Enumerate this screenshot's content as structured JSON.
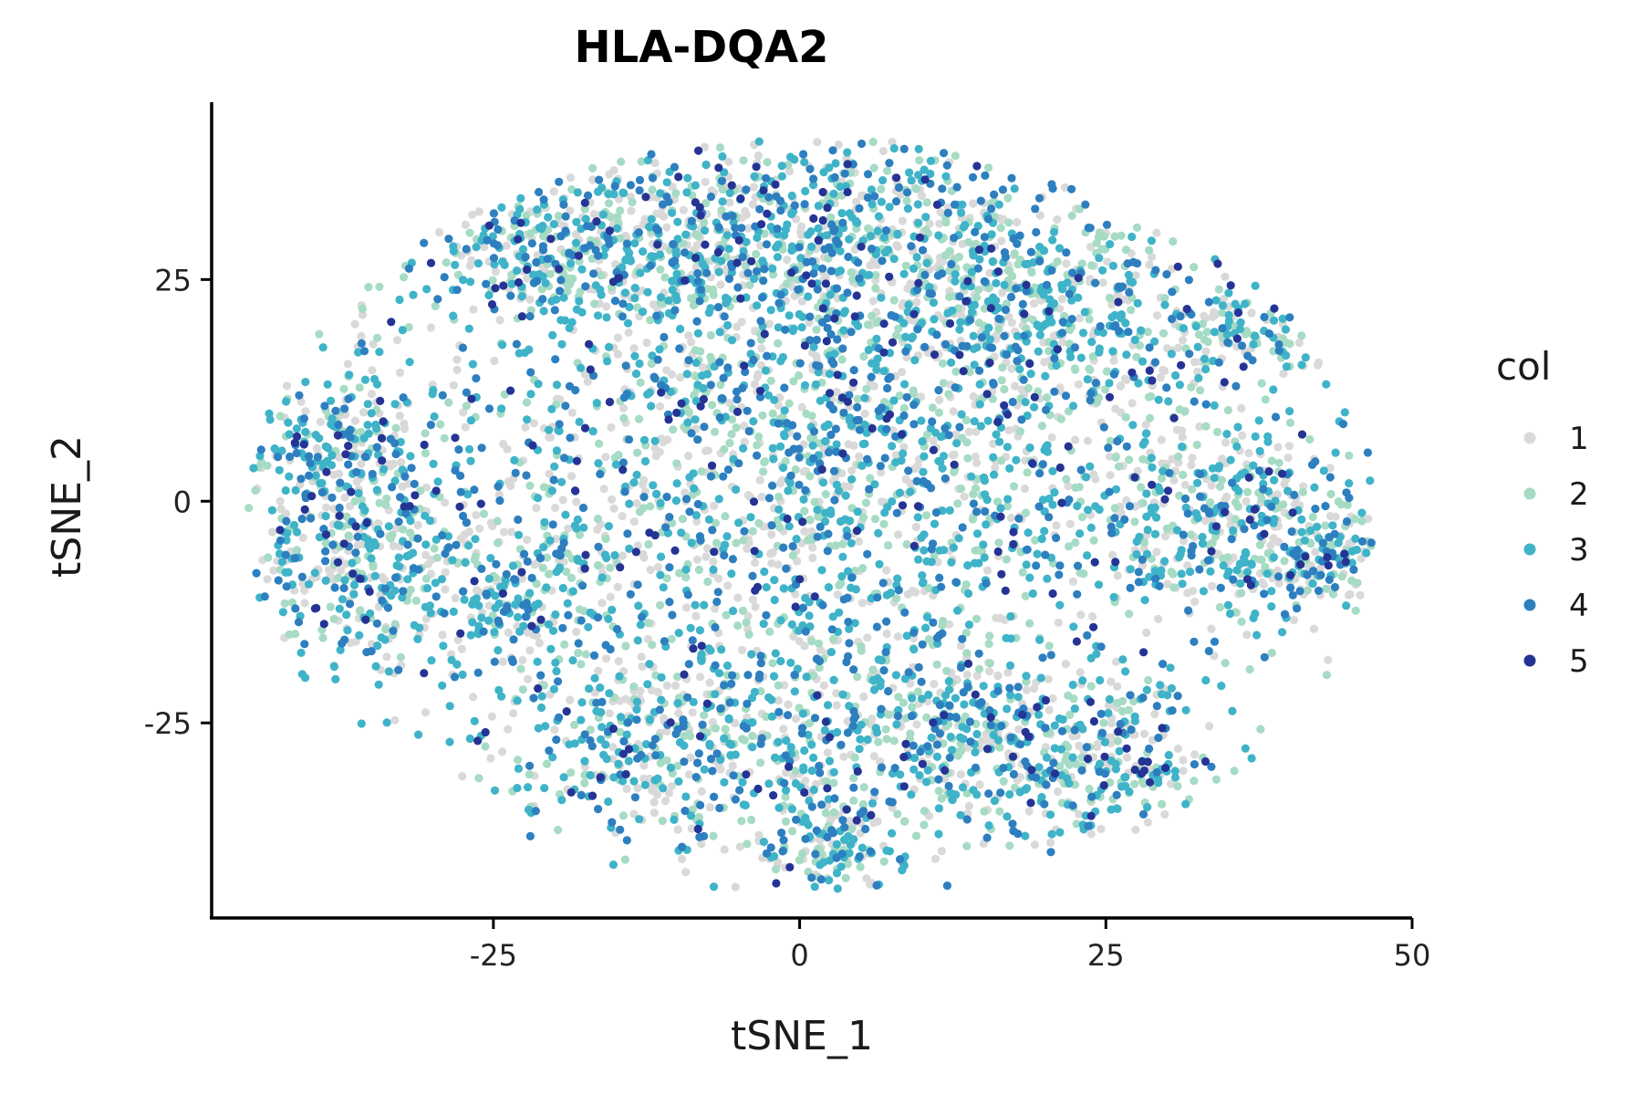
{
  "chart_data": {
    "type": "scatter",
    "title": "HLA-DQA2",
    "xlabel": "tSNE_1",
    "ylabel": "tSNE_2",
    "xlim": [
      -48,
      50
    ],
    "ylim": [
      -47,
      45
    ],
    "xticks": [
      {
        "value": -25,
        "label": "-25"
      },
      {
        "value": 0,
        "label": "0"
      },
      {
        "value": 25,
        "label": "25"
      },
      {
        "value": 50,
        "label": "50"
      }
    ],
    "yticks": [
      {
        "value": -25,
        "label": "-25"
      },
      {
        "value": 0,
        "label": "0"
      },
      {
        "value": 25,
        "label": "25"
      }
    ],
    "grid": false,
    "legend": {
      "title": "col",
      "position": "right",
      "entries": [
        {
          "label": "1",
          "color": "#d9d9d9"
        },
        {
          "label": "2",
          "color": "#a6dbc4"
        },
        {
          "label": "3",
          "color": "#3fb3c8"
        },
        {
          "label": "4",
          "color": "#2d7fbf"
        },
        {
          "label": "5",
          "color": "#253494"
        }
      ]
    },
    "series": [
      {
        "name": "1",
        "color": "#d9d9d9",
        "weight": 0.26
      },
      {
        "name": "2",
        "color": "#a6dbc4",
        "weight": 0.22
      },
      {
        "name": "3",
        "color": "#3fb3c8",
        "weight": 0.3
      },
      {
        "name": "4",
        "color": "#2d7fbf",
        "weight": 0.17
      },
      {
        "name": "5",
        "color": "#253494",
        "weight": 0.05
      }
    ],
    "clusters": [
      {
        "cx": 3,
        "cy": 8,
        "sx": 17,
        "sy": 17,
        "n": 2600
      },
      {
        "cx": -17,
        "cy": 29,
        "sx": 8,
        "sy": 4,
        "n": 420
      },
      {
        "cx": 2,
        "cy": 31,
        "sx": 10,
        "sy": 5,
        "n": 480
      },
      {
        "cx": 18,
        "cy": 22,
        "sx": 7,
        "sy": 5,
        "n": 320
      },
      {
        "cx": -37,
        "cy": 6,
        "sx": 4.5,
        "sy": 5,
        "n": 300
      },
      {
        "cx": -37,
        "cy": -9,
        "sx": 5,
        "sy": 6,
        "n": 300
      },
      {
        "cx": -24,
        "cy": -10,
        "sx": 5,
        "sy": 5,
        "n": 220
      },
      {
        "cx": 36,
        "cy": -3,
        "sx": 6,
        "sy": 5.5,
        "n": 420
      },
      {
        "cx": 43,
        "cy": -7,
        "sx": 2.5,
        "sy": 2.5,
        "n": 90
      },
      {
        "cx": 36,
        "cy": 19,
        "sx": 3,
        "sy": 2.5,
        "n": 110
      },
      {
        "cx": -10,
        "cy": -27,
        "sx": 9,
        "sy": 6,
        "n": 520
      },
      {
        "cx": 15,
        "cy": -27,
        "sx": 9,
        "sy": 6,
        "n": 520
      },
      {
        "cx": 3,
        "cy": -39,
        "sx": 3,
        "sy": 2.5,
        "n": 150
      },
      {
        "cx": 25,
        "cy": -31,
        "sx": 5,
        "sy": 4,
        "n": 180
      }
    ]
  }
}
